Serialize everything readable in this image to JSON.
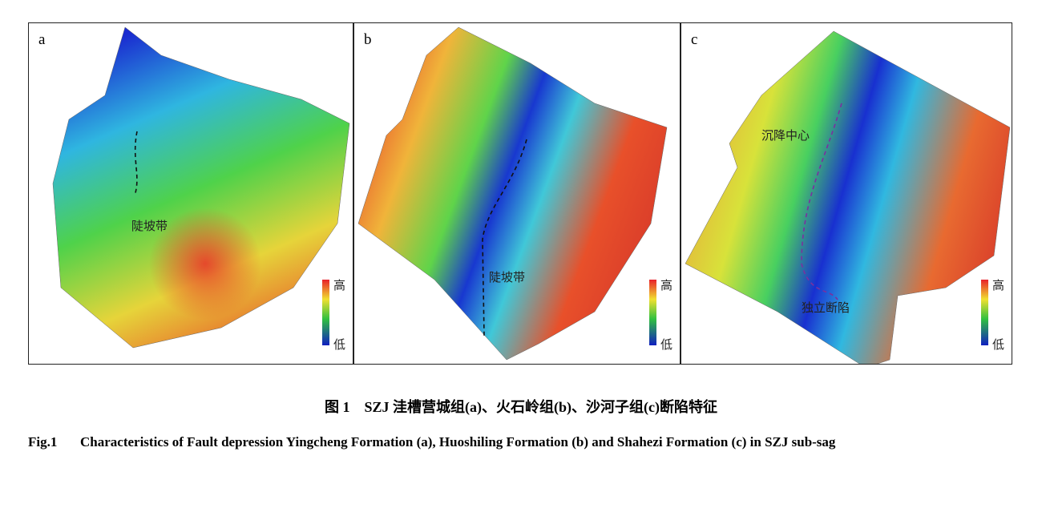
{
  "panels": [
    {
      "label": "a",
      "annotations": [
        "陡坡带"
      ],
      "legend": {
        "high": "高",
        "low": "低"
      }
    },
    {
      "label": "b",
      "annotations": [
        "陡坡带"
      ],
      "legend": {
        "high": "高",
        "low": "低"
      }
    },
    {
      "label": "c",
      "annotations": [
        "沉降中心",
        "独立断陷"
      ],
      "legend": {
        "high": "高",
        "low": "低"
      }
    }
  ],
  "caption": {
    "zh_label": "图 1",
    "zh_text": "SZJ 洼槽营城组(a)、火石岭组(b)、沙河子组(c)断陷特征",
    "en_label": "Fig.1",
    "en_text": "Characteristics of Fault depression Yingcheng Formation (a), Huoshiling Formation (b) and Shahezi Formation (c) in SZJ sub-sag"
  }
}
